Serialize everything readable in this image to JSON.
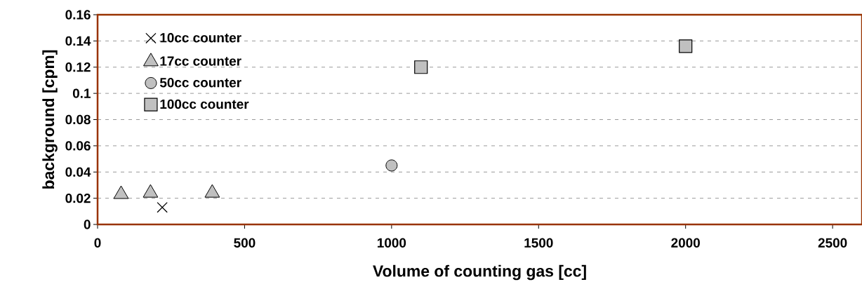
{
  "chart_data": {
    "type": "scatter",
    "xlabel": "Volume of counting gas [cc]",
    "ylabel": "background [cpm]",
    "xlim": [
      0,
      2600
    ],
    "xticks": [
      0,
      500,
      1000,
      1500,
      2000,
      2500
    ],
    "ylim": [
      0,
      0.16
    ],
    "yticks": [
      0,
      0.02,
      0.04,
      0.06,
      0.08,
      0.1,
      0.12,
      0.14,
      0.16
    ],
    "grid": "y",
    "legend": "top left",
    "series": [
      {
        "name": "10cc counter",
        "color": "#000000",
        "marker": "cross",
        "x": [
          220
        ],
        "values": [
          0.013
        ]
      },
      {
        "name": "17cc counter",
        "color": "#c0c0c0",
        "marker": "triangle",
        "x": [
          80,
          180,
          390
        ],
        "values": [
          0.023,
          0.024,
          0.024
        ]
      },
      {
        "name": "50cc counter",
        "color": "#c0c0c0",
        "marker": "circle",
        "x": [
          1000
        ],
        "values": [
          0.045
        ]
      },
      {
        "name": "100cc counter",
        "color": "#c0c0c0",
        "marker": "square",
        "x": [
          1100,
          2000
        ],
        "values": [
          0.12,
          0.136
        ]
      }
    ]
  }
}
